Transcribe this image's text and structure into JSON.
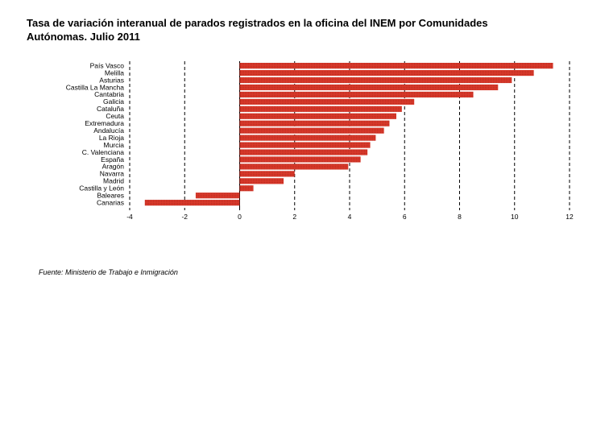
{
  "title": "Tasa de variación interanual de parados registrados en la oficina del INEM por Comunidades Autónomas. Julio 2011",
  "source": "Fuente: Ministerio de Trabajo e Inmigración",
  "colors": {
    "bar": "#d9392b",
    "bar_dark": "#b82a1e",
    "grid": "#000000"
  },
  "chart_data": {
    "type": "bar",
    "orientation": "horizontal",
    "title": "Tasa de variación interanual de parados registrados en la oficina del INEM por Comunidades Autónomas. Julio 2011",
    "xlabel": "",
    "ylabel": "",
    "xlim": [
      -4,
      12
    ],
    "xticks": [
      -4,
      -2,
      0,
      2,
      4,
      6,
      8,
      10,
      12
    ],
    "grid": "vertical dashed",
    "categories": [
      "País Vasco",
      "Melilla",
      "Asturias",
      "Castilla La Mancha",
      "Cantabria",
      "Galicia",
      "Cataluña",
      "Ceuta",
      "Extremadura",
      "Andalucía",
      "La Rioja",
      "Murcia",
      "C. Valenciana",
      "España",
      "Aragón",
      "Navarra",
      "Madrid",
      "Castilla y León",
      "Baleares",
      "Canarias"
    ],
    "values": [
      11.4,
      10.7,
      9.9,
      9.4,
      8.5,
      6.35,
      5.9,
      5.7,
      5.45,
      5.25,
      4.95,
      4.75,
      4.65,
      4.4,
      3.95,
      2.0,
      1.6,
      0.5,
      -1.6,
      -3.45
    ]
  }
}
